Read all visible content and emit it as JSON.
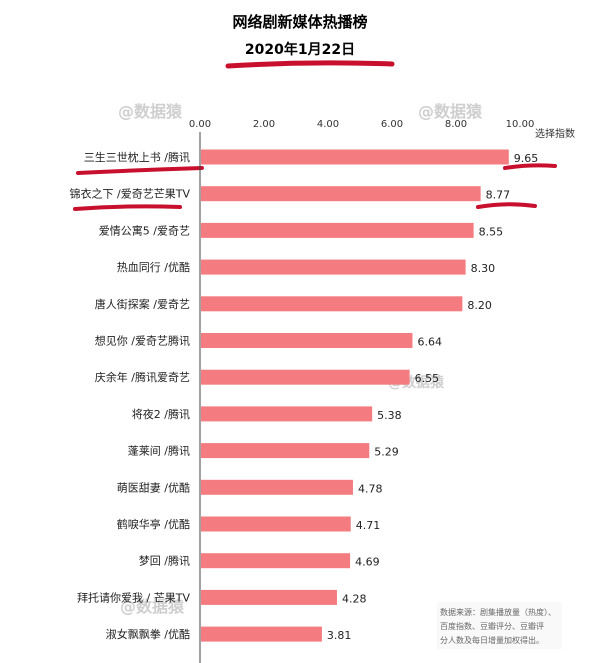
{
  "chart_data": {
    "type": "bar",
    "orientation": "horizontal",
    "title": "网络剧新媒体热播榜",
    "subtitle": "2020年1月22日",
    "xlabel": "选择指数",
    "xlim": [
      0,
      10
    ],
    "x_ticks": [
      "0.00",
      "2.00",
      "4.00",
      "6.00",
      "8.00",
      "10.00"
    ],
    "categories": [
      "三生三世枕上书 /腾讯",
      "锦衣之下 /爱奇艺芒果TV",
      "爱情公寓5 /爱奇艺",
      "热血同行 /优酷",
      "唐人街探案 /爱奇艺",
      "想见你 /爱奇艺腾讯",
      "庆余年 /腾讯爱奇艺",
      "将夜2 /腾讯",
      "蓬莱间 /腾讯",
      "萌医甜妻 /优酷",
      "鹤唳华亭 /优酷",
      "梦回 /腾讯",
      "拜托请你爱我 / 芒果TV",
      "淑女飘飘拳 /优酷"
    ],
    "values": [
      9.65,
      8.77,
      8.55,
      8.3,
      8.2,
      6.64,
      6.55,
      5.38,
      5.29,
      4.78,
      4.71,
      4.69,
      4.28,
      3.81
    ],
    "value_labels": [
      "9.65",
      "8.77",
      "8.55",
      "8.30",
      "8.20",
      "6.64",
      "6.55",
      "5.38",
      "5.29",
      "4.78",
      "4.71",
      "4.69",
      "4.28",
      "3.81"
    ],
    "grid": false,
    "colors": {
      "bar": "#f47c80",
      "annotation": "#c8102e"
    }
  },
  "source_note": [
    "数据来源：剧集播放量（热度）、",
    "百度指数、豆瓣评分、豆瓣评",
    "分人数及每日增量加权得出。"
  ],
  "watermark": "@数据猿"
}
